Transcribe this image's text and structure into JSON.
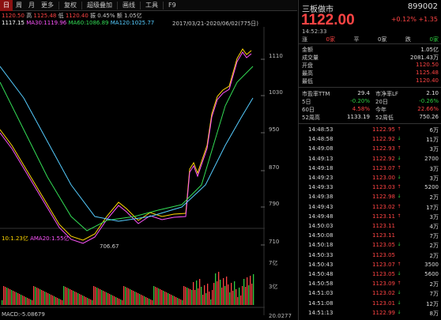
{
  "toolbar": {
    "items": [
      "日",
      "周",
      "月",
      "更多",
      "复权",
      "超级叠加",
      "画线",
      "工具",
      "F9"
    ],
    "active_index": 0
  },
  "quote_line": {
    "open": "1120.50",
    "high_label": "高",
    "high": "1125.48",
    "low_label": "低",
    "low": "1120.40",
    "amp_label": "振",
    "amp": "0.45%",
    "amount_label": "额",
    "amount": "1.05亿"
  },
  "ma_line": {
    "ma1": "1117.15",
    "ma30": "MA30:1119.96",
    "ma60": "MA60:1086.89",
    "ma120": "MA120:1025.77"
  },
  "date_range": "2017/03/21-2020/06/02(775日)",
  "y_axis": [
    "1110",
    "1030",
    "950",
    "870",
    "790",
    "710"
  ],
  "low_marker": "706.67",
  "volume": {
    "vol": "10:1.23亿",
    "ma20": "AMA20:1.55亿",
    "axis": [
      "7亿",
      "3亿"
    ]
  },
  "macd": {
    "label": "MACD:-5.08679",
    "axis_top": "20.0277"
  },
  "panel": {
    "name": "三板做市",
    "code": "899002",
    "price": "1122.00",
    "change": "+0.12%  +1.35",
    "time": "14:52:33",
    "header": {
      "a": "涨",
      "b": "0家",
      "c": "平",
      "d": "0家",
      "e": "跌",
      "f": "0家"
    },
    "stats": [
      {
        "label": "金额",
        "value": "1.05亿"
      },
      {
        "label": "成交量",
        "value": "2081.43万"
      },
      {
        "label": "开盘",
        "value": "1120.50",
        "color": "red"
      },
      {
        "label": "最高",
        "value": "1125.48",
        "color": "red"
      },
      {
        "label": "最低",
        "value": "1120.40",
        "color": "red"
      }
    ],
    "metrics": [
      {
        "l1": "市盈率TTM",
        "v1": "29.4",
        "l2": "市净率LF",
        "v2": "2.10"
      },
      {
        "l1": "5日",
        "v1": "-0.20%",
        "c1": "green",
        "l2": "20日",
        "v2": "-0.26%",
        "c2": "green"
      },
      {
        "l1": "60日",
        "v1": "4.58%",
        "c1": "red",
        "l2": "今年",
        "v2": "22.66%",
        "c2": "red"
      },
      {
        "l1": "52周高",
        "v1": "1133.19",
        "l2": "52周低",
        "v2": "750.26"
      }
    ],
    "trades": [
      {
        "t": "14:48:53",
        "p": "1122.95",
        "d": "up",
        "s": "6万"
      },
      {
        "t": "14:48:58",
        "p": "1122.92",
        "d": "down",
        "s": "11万"
      },
      {
        "t": "14:49:08",
        "p": "1122.93",
        "d": "up",
        "s": "3万"
      },
      {
        "t": "14:49:13",
        "p": "1122.92",
        "d": "down",
        "s": "2700"
      },
      {
        "t": "14:49:18",
        "p": "1123.07",
        "d": "up",
        "s": "3万"
      },
      {
        "t": "14:49:23",
        "p": "1123.00",
        "d": "down",
        "s": "3万"
      },
      {
        "t": "14:49:33",
        "p": "1123.03",
        "d": "up",
        "s": "5200"
      },
      {
        "t": "14:49:38",
        "p": "1122.98",
        "d": "down",
        "s": "2万"
      },
      {
        "t": "14:49:43",
        "p": "1123.02",
        "d": "up",
        "s": "17万"
      },
      {
        "t": "14:49:48",
        "p": "1123.11",
        "d": "up",
        "s": "3万"
      },
      {
        "t": "14:50:03",
        "p": "1123.11",
        "d": "",
        "s": "4万"
      },
      {
        "t": "14:50:08",
        "p": "1123.11",
        "d": "",
        "s": "7万"
      },
      {
        "t": "14:50:18",
        "p": "1123.05",
        "d": "down",
        "s": "2万"
      },
      {
        "t": "14:50:33",
        "p": "1123.05",
        "d": "",
        "s": "2万"
      },
      {
        "t": "14:50:43",
        "p": "1123.07",
        "d": "up",
        "s": "3500"
      },
      {
        "t": "14:50:48",
        "p": "1123.05",
        "d": "down",
        "s": "5600"
      },
      {
        "t": "14:50:58",
        "p": "1123.09",
        "d": "up",
        "s": "2万"
      },
      {
        "t": "14:51:03",
        "p": "1123.02",
        "d": "down",
        "s": "7万"
      },
      {
        "t": "14:51:08",
        "p": "1123.01",
        "d": "down",
        "s": "12万"
      },
      {
        "t": "14:51:13",
        "p": "1122.99",
        "d": "down",
        "s": "8万"
      }
    ]
  },
  "colors": {
    "up": "#ff4444",
    "down": "#2ecc40",
    "active_tab": "#8b1111",
    "ma5": "#ffffff",
    "ma10": "#ffd700",
    "ma30": "#ff55ff",
    "ma60": "#33dd55",
    "ma120": "#55ccff"
  }
}
